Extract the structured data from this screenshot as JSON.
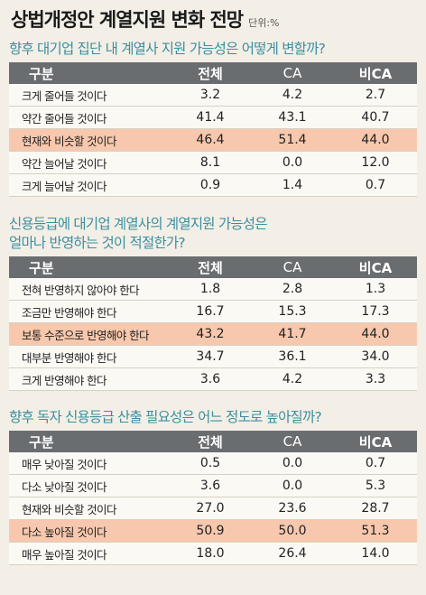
{
  "header": {
    "title": "상법개정안 계열지원 변화 전망",
    "unit": "단위:%"
  },
  "chart_data": {
    "type": "table",
    "columns": [
      "구분",
      "전체",
      "CA",
      "비CA"
    ],
    "tables": [
      {
        "question": "향후 대기업 집단 내 계열사 지원 가능성은 어떻게 변할까?",
        "highlight_row": 2,
        "rows": [
          {
            "label": "크게 줄어들 것이다",
            "values": [
              "3.2",
              "4.2",
              "2.7"
            ]
          },
          {
            "label": "약간 줄어들 것이다",
            "values": [
              "41.4",
              "43.1",
              "40.7"
            ]
          },
          {
            "label": "현재와 비슷할 것이다",
            "values": [
              "46.4",
              "51.4",
              "44.0"
            ]
          },
          {
            "label": "약간 늘어날 것이다",
            "values": [
              "8.1",
              "0.0",
              "12.0"
            ]
          },
          {
            "label": "크게 늘어날 것이다",
            "values": [
              "0.9",
              "1.4",
              "0.7"
            ]
          }
        ]
      },
      {
        "question": "신용등급에 대기업 계열사의 계열지원 가능성은",
        "question_line2": "얼마나 반영하는 것이 적절한가?",
        "highlight_row": 2,
        "rows": [
          {
            "label": "전혀 반영하지 않아야 한다",
            "values": [
              "1.8",
              "2.8",
              "1.3"
            ]
          },
          {
            "label": "조금만 반영해야 한다",
            "values": [
              "16.7",
              "15.3",
              "17.3"
            ]
          },
          {
            "label": "보통 수준으로 반영해야 한다",
            "values": [
              "43.2",
              "41.7",
              "44.0"
            ]
          },
          {
            "label": "대부분 반영해야 한다",
            "values": [
              "34.7",
              "36.1",
              "34.0"
            ]
          },
          {
            "label": "크게 반영해야 한다",
            "values": [
              "3.6",
              "4.2",
              "3.3"
            ]
          }
        ]
      },
      {
        "question": "향후 독자 신용등급 산출 필요성은 어느 정도로 높아질까?",
        "highlight_row": 3,
        "rows": [
          {
            "label": "매우 낮아질 것이다",
            "values": [
              "0.5",
              "0.0",
              "0.7"
            ]
          },
          {
            "label": "다소 낮아질 것이다",
            "values": [
              "3.6",
              "0.0",
              "5.3"
            ]
          },
          {
            "label": "현재와 비슷할 것이다",
            "values": [
              "27.0",
              "23.6",
              "28.7"
            ]
          },
          {
            "label": "다소 높아질 것이다",
            "values": [
              "50.9",
              "50.0",
              "51.3"
            ]
          },
          {
            "label": "매우 높아질 것이다",
            "values": [
              "18.0",
              "26.4",
              "14.0"
            ]
          }
        ]
      }
    ]
  }
}
